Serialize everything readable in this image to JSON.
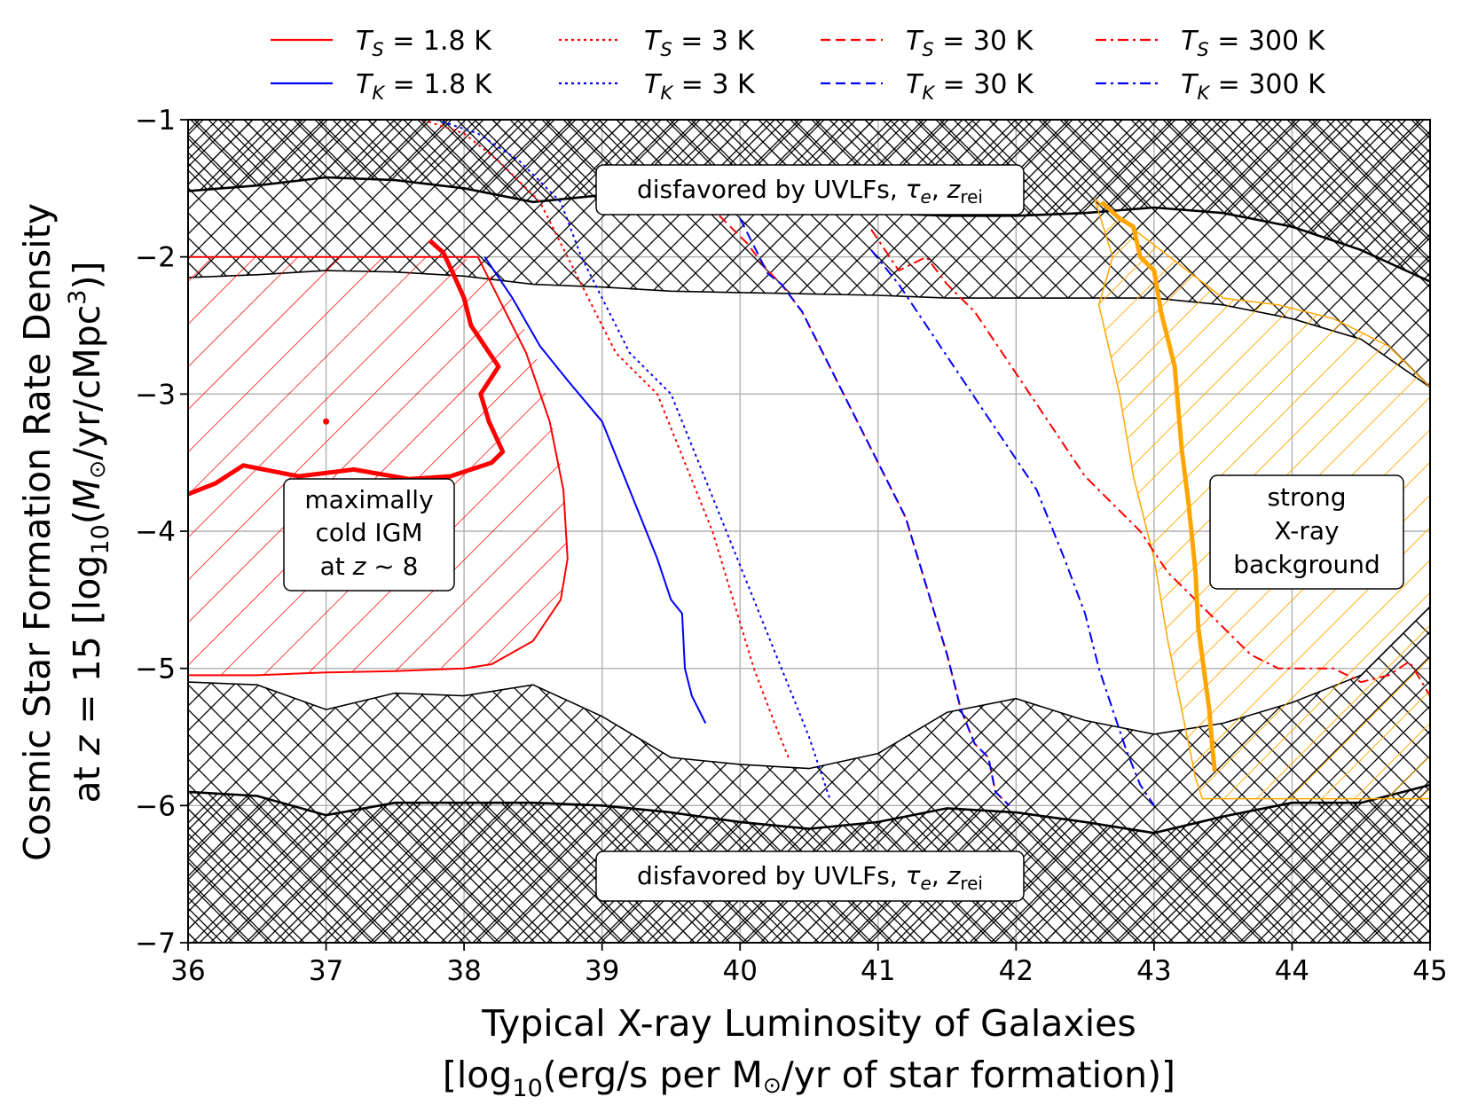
{
  "chart_data": {
    "type": "line",
    "title": "",
    "xlabel_line1": "Typical X-ray Luminosity of Galaxies",
    "xlabel_line2_pre": "[log",
    "xlabel_line2_sub": "10",
    "xlabel_line2_post": "(erg/s per M",
    "xlabel_line2_sun": "⊙",
    "xlabel_line2_end": "/yr of star formation)]",
    "ylabel_line1": "Cosmic Star Formation Rate Density",
    "ylabel_line2_a": "at ",
    "ylabel_line2_z": "z",
    "ylabel_line2_b": " = 15 [log",
    "ylabel_line2_sub": "10",
    "ylabel_line2_c": "(",
    "ylabel_line2_M": "M",
    "ylabel_line2_sun": "⊙",
    "ylabel_line2_d": "/yr/cMpc",
    "ylabel_line2_sup": "3",
    "ylabel_line2_e": ")]",
    "xlim": [
      36,
      45
    ],
    "ylim": [
      -7,
      -1
    ],
    "xticks": [
      36,
      37,
      38,
      39,
      40,
      41,
      42,
      43,
      44,
      45
    ],
    "yticks": [
      -7,
      -6,
      -5,
      -4,
      -3,
      -2,
      -1
    ],
    "xtick_labels": [
      "36",
      "37",
      "38",
      "39",
      "40",
      "41",
      "42",
      "43",
      "44",
      "45"
    ],
    "ytick_labels": [
      "−7",
      "−6",
      "−5",
      "−4",
      "−3",
      "−2",
      "−1"
    ],
    "grid": true,
    "legend_position": "top, above plot",
    "colors": {
      "red": "#ff0000",
      "blue": "#0000ff",
      "orange": "#ffa500",
      "black": "#000000",
      "grid": "#b0b0b0"
    },
    "legend": [
      {
        "var": "T",
        "sub": "S",
        "value": "= 1.8 K",
        "color": "#ff0000",
        "style": "solid"
      },
      {
        "var": "T",
        "sub": "K",
        "value": "= 1.8 K",
        "color": "#0000ff",
        "style": "solid"
      },
      {
        "var": "T",
        "sub": "S",
        "value": "= 3 K",
        "color": "#ff0000",
        "style": "dotted"
      },
      {
        "var": "T",
        "sub": "K",
        "value": "= 3 K",
        "color": "#0000ff",
        "style": "dotted"
      },
      {
        "var": "T",
        "sub": "S",
        "value": "= 30 K",
        "color": "#ff0000",
        "style": "dashed"
      },
      {
        "var": "T",
        "sub": "K",
        "value": "= 30 K",
        "color": "#0000ff",
        "style": "dashed"
      },
      {
        "var": "T",
        "sub": "S",
        "value": "= 300 K",
        "color": "#ff0000",
        "style": "dashdot"
      },
      {
        "var": "T",
        "sub": "K",
        "value": "= 300 K",
        "color": "#0000ff",
        "style": "dashdot"
      }
    ],
    "annotations": {
      "top_box": {
        "pre": "disfavored by UVLFs, ",
        "tau": "τ",
        "tau_sub": "e",
        "mid": ", ",
        "z": "z",
        "z_sub": "rei"
      },
      "bottom_box": {
        "pre": "disfavored by UVLFs, ",
        "tau": "τ",
        "tau_sub": "e",
        "mid": ", ",
        "z": "z",
        "z_sub": "rei"
      },
      "cold_box": {
        "line1": "maximally",
        "line2": "cold IGM",
        "line3_pre": "at ",
        "line3_z": "z",
        "line3_post": " ~ 8"
      },
      "xray_box": {
        "line1": "strong",
        "line2": "X-ray",
        "line3": "background"
      }
    },
    "regions": {
      "upper_inner_boundary": {
        "x": [
          36,
          36.5,
          37,
          37.5,
          38,
          38.5,
          39,
          39.5,
          40,
          40.5,
          41,
          41.5,
          42,
          42.5,
          43,
          43.5,
          44,
          44.5,
          45
        ],
        "y": [
          -2.15,
          -2.13,
          -2.1,
          -2.11,
          -2.14,
          -2.2,
          -2.22,
          -2.25,
          -2.26,
          -2.27,
          -2.28,
          -2.3,
          -2.3,
          -2.3,
          -2.3,
          -2.35,
          -2.45,
          -2.6,
          -2.95
        ]
      },
      "upper_outer_boundary": {
        "x": [
          36,
          36.5,
          37,
          37.5,
          38,
          38.5,
          39,
          39.5,
          40,
          40.5,
          41,
          41.5,
          42,
          42.5,
          43,
          43.5,
          44,
          44.5,
          45
        ],
        "y": [
          -1.52,
          -1.48,
          -1.42,
          -1.44,
          -1.5,
          -1.6,
          -1.55,
          -1.56,
          -1.62,
          -1.66,
          -1.68,
          -1.7,
          -1.7,
          -1.68,
          -1.64,
          -1.68,
          -1.78,
          -1.95,
          -2.18
        ]
      },
      "lower_inner_boundary": {
        "x": [
          36,
          36.5,
          37,
          37.5,
          38,
          38.5,
          39,
          39.5,
          40,
          40.5,
          41,
          41.5,
          42,
          42.5,
          43,
          43.5,
          44,
          44.5,
          45
        ],
        "y": [
          -5.1,
          -5.12,
          -5.3,
          -5.18,
          -5.2,
          -5.12,
          -5.35,
          -5.65,
          -5.7,
          -5.73,
          -5.62,
          -5.32,
          -5.22,
          -5.38,
          -5.48,
          -5.4,
          -5.25,
          -5.05,
          -4.55
        ]
      },
      "lower_outer_boundary": {
        "x": [
          36,
          36.5,
          37,
          37.5,
          38,
          38.5,
          39,
          39.5,
          40,
          40.5,
          41,
          41.5,
          42,
          42.5,
          43,
          43.5,
          44,
          44.5,
          45
        ],
        "y": [
          -5.9,
          -5.93,
          -6.07,
          -5.98,
          -5.98,
          -5.98,
          -6.0,
          -6.05,
          -6.12,
          -6.17,
          -6.12,
          -6.02,
          -6.05,
          -6.12,
          -6.2,
          -6.08,
          -5.98,
          -5.98,
          -5.85
        ]
      },
      "cold_igm_region": {
        "x": [
          36,
          36.5,
          37,
          37.5,
          38,
          38.3,
          38.55,
          38.7,
          38.75,
          38.7,
          38.55,
          38.2,
          37.5,
          37,
          36.5,
          36
        ],
        "y": [
          -2.0,
          -2.0,
          -2.0,
          -2.0,
          -2.0,
          -2.2,
          -2.8,
          -3.5,
          -4.1,
          -4.6,
          -4.8,
          -4.97,
          -5.02,
          -5.03,
          -5.05,
          -5.05
        ]
      },
      "xray_region": {
        "x": [
          42.57,
          42.7,
          42.6,
          42.75,
          42.85,
          43.0,
          43.1,
          43.2,
          43.3,
          43.35,
          45,
          45,
          45,
          44.7,
          44.3,
          43.9,
          43.5
        ],
        "y": [
          -1.58,
          -2.0,
          -2.35,
          -3.0,
          -3.6,
          -4.2,
          -4.8,
          -5.3,
          -5.8,
          -5.95,
          -5.95,
          -4.6,
          -2.95,
          -2.65,
          -2.45,
          -2.35,
          -2.3
        ]
      }
    },
    "series": [
      {
        "name": "cold_IGM_boundary",
        "color": "#ff0000",
        "style": "solid",
        "width": 5,
        "x": [
          36.0,
          36.2,
          36.4,
          36.8,
          37.2,
          37.6,
          37.9,
          38.05,
          38.2,
          38.28,
          38.18,
          38.12,
          38.25,
          38.15,
          38.05,
          38.0,
          37.92,
          37.85,
          37.75
        ],
        "y": [
          -3.73,
          -3.65,
          -3.52,
          -3.6,
          -3.55,
          -3.62,
          -3.6,
          -3.55,
          -3.5,
          -3.42,
          -3.2,
          -3.0,
          -2.8,
          -2.65,
          -2.5,
          -2.3,
          -2.12,
          -1.97,
          -1.88
        ]
      },
      {
        "name": "T_S_1.8K",
        "color": "#ff0000",
        "style": "solid",
        "width": 2,
        "x": [
          36.0,
          36.5,
          37.0,
          37.5,
          38.0,
          38.2,
          38.5,
          38.6,
          38.7,
          38.75,
          38.72,
          38.62,
          38.45,
          38.2,
          38.1,
          38.0,
          37.8,
          37.5,
          37.2,
          36.9,
          36.6,
          36.3,
          36.0
        ],
        "y": [
          -5.05,
          -5.05,
          -5.03,
          -5.02,
          -5.0,
          -4.97,
          -4.8,
          -4.65,
          -4.5,
          -4.2,
          -3.7,
          -3.2,
          -2.7,
          -2.2,
          -2.0,
          -2.0,
          -2.0,
          -2.0,
          -2.0,
          -2.0,
          -2.0,
          -2.0,
          -2.0
        ]
      },
      {
        "name": "T_K_1.8K",
        "color": "#0000ff",
        "style": "solid",
        "width": 2,
        "x": [
          38.15,
          38.35,
          38.55,
          38.75,
          39.0,
          39.2,
          39.4,
          39.5,
          39.58,
          39.6,
          39.65,
          39.75
        ],
        "y": [
          -2.0,
          -2.3,
          -2.65,
          -2.9,
          -3.2,
          -3.7,
          -4.2,
          -4.5,
          -4.6,
          -5.0,
          -5.2,
          -5.4
        ]
      },
      {
        "name": "T_S_3K",
        "color": "#ff0000",
        "style": "dotted",
        "width": 2,
        "x": [
          37.7,
          38.0,
          38.25,
          38.55,
          38.75,
          38.9,
          39.1,
          39.4,
          39.6,
          39.8,
          39.95,
          40.1,
          40.25,
          40.35
        ],
        "y": [
          -1.0,
          -1.1,
          -1.3,
          -1.6,
          -2.0,
          -2.3,
          -2.7,
          -3.0,
          -3.5,
          -4.0,
          -4.5,
          -5.0,
          -5.4,
          -5.65
        ]
      },
      {
        "name": "T_K_3K",
        "color": "#0000ff",
        "style": "dotted",
        "width": 2,
        "x": [
          37.8,
          38.1,
          38.4,
          38.7,
          38.85,
          39.0,
          39.2,
          39.5,
          39.7,
          39.9,
          40.1,
          40.3,
          40.5,
          40.65
        ],
        "y": [
          -1.0,
          -1.1,
          -1.3,
          -1.6,
          -2.0,
          -2.3,
          -2.7,
          -3.0,
          -3.5,
          -4.0,
          -4.5,
          -5.0,
          -5.5,
          -5.95
        ]
      },
      {
        "name": "T_S_30K",
        "color": "#ff0000",
        "style": "dashed",
        "width": 2,
        "x": [
          39.85,
          40.05,
          40.2,
          40.3,
          40.45,
          40.7,
          40.95,
          41.2,
          41.35,
          41.5,
          41.6,
          41.7,
          41.8,
          41.85,
          41.9,
          41.95
        ],
        "y": [
          -1.7,
          -1.9,
          -2.1,
          -2.2,
          -2.4,
          -2.9,
          -3.4,
          -3.9,
          -4.4,
          -4.9,
          -5.3,
          -5.55,
          -5.65,
          -5.9,
          -5.95,
          -6.0
        ]
      },
      {
        "name": "T_K_30K",
        "color": "#0000ff",
        "style": "dashed",
        "width": 2,
        "x": [
          40.0,
          40.1,
          40.2,
          40.3,
          40.45,
          40.7,
          40.95,
          41.2,
          41.35,
          41.5,
          41.6,
          41.7,
          41.8,
          41.85,
          41.9,
          41.95
        ],
        "y": [
          -1.72,
          -1.92,
          -2.12,
          -2.2,
          -2.4,
          -2.9,
          -3.4,
          -3.9,
          -4.4,
          -4.9,
          -5.3,
          -5.55,
          -5.65,
          -5.9,
          -5.95,
          -6.0
        ]
      },
      {
        "name": "T_S_300K",
        "color": "#ff0000",
        "style": "dashdot",
        "width": 2,
        "x": [
          40.95,
          41.15,
          41.35,
          41.5,
          41.7,
          41.9,
          42.1,
          42.3,
          42.5,
          42.7,
          42.9,
          43.1,
          43.3,
          43.5,
          43.7,
          43.9,
          44.1,
          44.3,
          44.5,
          44.7,
          44.85,
          45.0
        ],
        "y": [
          -1.8,
          -2.1,
          -2.0,
          -2.2,
          -2.4,
          -2.7,
          -3.0,
          -3.3,
          -3.6,
          -3.8,
          -4.0,
          -4.3,
          -4.5,
          -4.7,
          -4.9,
          -5.0,
          -5.0,
          -5.0,
          -5.1,
          -5.05,
          -4.95,
          -5.2
        ]
      },
      {
        "name": "T_K_300K",
        "color": "#0000ff",
        "style": "dashdot",
        "width": 2,
        "x": [
          40.95,
          41.15,
          41.35,
          41.55,
          41.75,
          41.95,
          42.15,
          42.35,
          42.5,
          42.6,
          42.7,
          42.8,
          42.9,
          43.0
        ],
        "y": [
          -1.95,
          -2.2,
          -2.5,
          -2.8,
          -3.1,
          -3.4,
          -3.7,
          -4.2,
          -4.6,
          -5.0,
          -5.3,
          -5.6,
          -5.85,
          -6.0
        ]
      },
      {
        "name": "xray_background_boundary",
        "color": "#ffa500",
        "style": "solid",
        "width": 5,
        "x": [
          42.62,
          42.75,
          42.85,
          42.9,
          43.0,
          43.05,
          43.15,
          43.2,
          43.25,
          43.3,
          43.32,
          43.36,
          43.4,
          43.42,
          43.44
        ],
        "y": [
          -1.6,
          -1.72,
          -1.78,
          -2.0,
          -2.1,
          -2.4,
          -2.8,
          -3.4,
          -3.8,
          -4.3,
          -4.7,
          -5.0,
          -5.3,
          -5.55,
          -5.75
        ]
      }
    ]
  }
}
